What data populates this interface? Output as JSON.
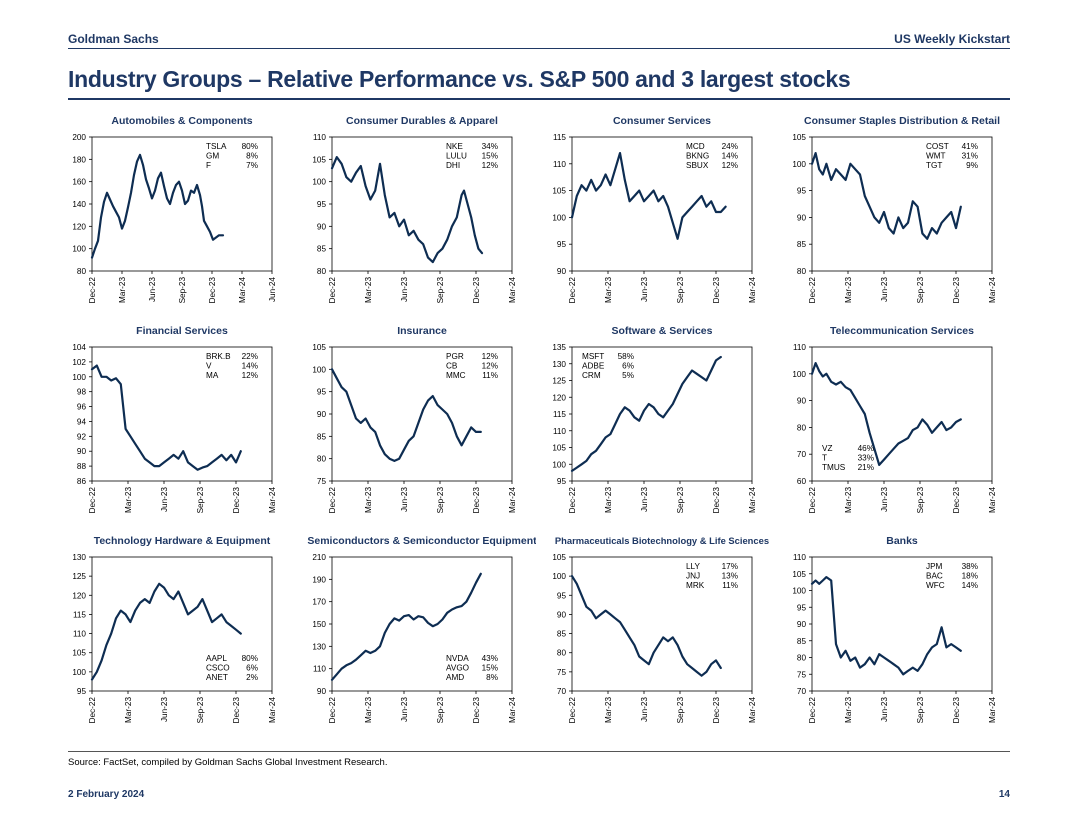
{
  "header": {
    "brand": "Goldman Sachs",
    "report": "US Weekly Kickstart",
    "title": "Industry Groups – Relative Performance vs. S&P 500 and 3 largest stocks"
  },
  "footer": {
    "source": "Source: FactSet, compiled by Goldman Sachs Global Investment Research.",
    "date": "2 February 2024",
    "page": "14"
  },
  "colors": {
    "line": "#0e2d52",
    "brand": "#1f3864",
    "axis": "#000000"
  },
  "x_ticks": [
    "Dec-22",
    "Mar-23",
    "Jun-23",
    "Sep-23",
    "Dec-23",
    "Mar-24",
    "Jun-24"
  ],
  "chart_data": [
    {
      "type": "line",
      "title": "Automobiles & Components",
      "ylim": [
        80,
        200
      ],
      "yticks": [
        "80",
        "100",
        "120",
        "140",
        "160",
        "180",
        "200"
      ],
      "xticks": [
        "Dec-22",
        "Mar-23",
        "Jun-23",
        "Sep-23",
        "Dec-23",
        "Mar-24",
        "Jun-24"
      ],
      "x": [
        0,
        0.3,
        0.6,
        0.9,
        1.2,
        1.5,
        1.8,
        2.1,
        2.4,
        2.7,
        3,
        3.3,
        3.6,
        3.9,
        4.2,
        4.5,
        4.8,
        5.1,
        5.4,
        5.7,
        6,
        6.3,
        6.6,
        6.9,
        7.2,
        7.5,
        7.8,
        8.1,
        8.4,
        8.7,
        9,
        9.3,
        9.6,
        9.9,
        10.2,
        10.5,
        10.8,
        11,
        11.2,
        11.5,
        11.8,
        12.1,
        12.4,
        12.7,
        13.1
      ],
      "values": [
        92,
        100,
        107,
        128,
        142,
        150,
        144,
        138,
        133,
        128,
        118,
        125,
        137,
        150,
        166,
        178,
        184,
        175,
        162,
        154,
        145,
        152,
        163,
        168,
        156,
        145,
        140,
        150,
        157,
        160,
        152,
        140,
        143,
        152,
        150,
        157,
        148,
        138,
        125,
        120,
        115,
        108,
        110,
        112,
        112
      ],
      "legend": [
        {
          "ticker": "TSLA",
          "pct": "80%"
        },
        {
          "ticker": "GM",
          "pct": "8%"
        },
        {
          "ticker": "F",
          "pct": "7%"
        }
      ],
      "legend_pos": "top-right"
    },
    {
      "type": "line",
      "title": "Consumer Durables & Apparel",
      "ylim": [
        80,
        110
      ],
      "yticks": [
        "80",
        "85",
        "90",
        "95",
        "100",
        "105",
        "110"
      ],
      "xticks": [
        "Dec-22",
        "Mar-23",
        "Jun-23",
        "Sep-23",
        "Dec-23",
        "Mar-24"
      ],
      "x": [
        0,
        0.4,
        0.8,
        1.2,
        1.6,
        2,
        2.4,
        2.8,
        3.2,
        3.6,
        4,
        4.4,
        4.8,
        5.2,
        5.6,
        6,
        6.4,
        6.8,
        7.2,
        7.6,
        8,
        8.4,
        8.8,
        9.2,
        9.6,
        10,
        10.4,
        10.8,
        11,
        11.3,
        11.6,
        11.9,
        12.2,
        12.5
      ],
      "values": [
        103,
        105.5,
        104,
        101,
        100,
        102,
        103.5,
        99,
        96,
        98,
        104,
        97,
        92,
        93,
        90,
        91.5,
        88,
        89,
        87,
        86,
        83,
        82,
        84,
        85,
        87,
        90,
        92,
        97,
        98,
        95,
        92,
        88,
        85,
        84
      ],
      "legend": [
        {
          "ticker": "NKE",
          "pct": "34%"
        },
        {
          "ticker": "LULU",
          "pct": "15%"
        },
        {
          "ticker": "DHI",
          "pct": "12%"
        }
      ],
      "legend_pos": "top-right"
    },
    {
      "type": "line",
      "title": "Consumer Services",
      "ylim": [
        90,
        115
      ],
      "yticks": [
        "90",
        "95",
        "100",
        "105",
        "110",
        "115"
      ],
      "xticks": [
        "Dec-22",
        "Mar-23",
        "Jun-23",
        "Sep-23",
        "Dec-23",
        "Mar-24"
      ],
      "x": [
        0,
        0.4,
        0.8,
        1.2,
        1.6,
        2,
        2.4,
        2.8,
        3.2,
        3.6,
        4,
        4.4,
        4.8,
        5.2,
        5.6,
        6,
        6.4,
        6.8,
        7.2,
        7.6,
        8,
        8.4,
        8.8,
        9.2,
        9.6,
        10,
        10.4,
        10.8,
        11.2,
        11.6,
        12,
        12.4,
        12.8
      ],
      "values": [
        100,
        104,
        106,
        105,
        107,
        105,
        106,
        108,
        106,
        109,
        112,
        107,
        103,
        104,
        105,
        103,
        104,
        105,
        103,
        104,
        102,
        99,
        96,
        100,
        101,
        102,
        103,
        104,
        102,
        103,
        101,
        101,
        102
      ],
      "legend": [
        {
          "ticker": "MCD",
          "pct": "24%"
        },
        {
          "ticker": "BKNG",
          "pct": "14%"
        },
        {
          "ticker": "SBUX",
          "pct": "12%"
        }
      ],
      "legend_pos": "top-right"
    },
    {
      "type": "line",
      "title": "Consumer Staples Distribution & Retail",
      "ylim": [
        80,
        105
      ],
      "yticks": [
        "80",
        "85",
        "90",
        "95",
        "100",
        "105"
      ],
      "xticks": [
        "Dec-22",
        "Mar-23",
        "Jun-23",
        "Sep-23",
        "Dec-23",
        "Mar-24"
      ],
      "x": [
        0,
        0.3,
        0.6,
        0.9,
        1.2,
        1.6,
        2,
        2.4,
        2.8,
        3.2,
        3.6,
        4,
        4.4,
        4.8,
        5.2,
        5.6,
        6,
        6.4,
        6.8,
        7.2,
        7.6,
        8,
        8.4,
        8.8,
        9.2,
        9.6,
        10,
        10.4,
        10.8,
        11.2,
        11.6,
        12,
        12.4
      ],
      "values": [
        100,
        102,
        99,
        98,
        100,
        97,
        99,
        98,
        97,
        100,
        99,
        98,
        94,
        92,
        90,
        89,
        91,
        88,
        87,
        90,
        88,
        89,
        93,
        92,
        87,
        86,
        88,
        87,
        89,
        90,
        91,
        88,
        92
      ],
      "legend": [
        {
          "ticker": "COST",
          "pct": "41%"
        },
        {
          "ticker": "WMT",
          "pct": "31%"
        },
        {
          "ticker": "TGT",
          "pct": "9%"
        }
      ],
      "legend_pos": "top-right"
    },
    {
      "type": "line",
      "title": "Financial Services",
      "ylim": [
        86,
        104
      ],
      "yticks": [
        "86",
        "88",
        "90",
        "92",
        "94",
        "96",
        "98",
        "100",
        "102",
        "104"
      ],
      "xticks": [
        "Dec-22",
        "Mar-23",
        "Jun-23",
        "Sep-23",
        "Dec-23",
        "Mar-24"
      ],
      "x": [
        0,
        0.4,
        0.8,
        1.2,
        1.6,
        2,
        2.4,
        2.8,
        3.2,
        3.6,
        4,
        4.4,
        4.8,
        5.2,
        5.6,
        6,
        6.4,
        6.8,
        7.2,
        7.6,
        8,
        8.4,
        8.8,
        9.2,
        9.6,
        10,
        10.4,
        10.8,
        11.2,
        11.6,
        12,
        12.4
      ],
      "values": [
        101,
        101.5,
        100,
        100,
        99.5,
        99.8,
        99,
        93,
        92,
        91,
        90,
        89,
        88.5,
        88,
        88,
        88.5,
        89,
        89.5,
        89,
        90,
        88.5,
        88,
        87.5,
        87.8,
        88,
        88.5,
        89,
        89.5,
        88.8,
        89.5,
        88.5,
        90
      ],
      "legend": [
        {
          "ticker": "BRK.B",
          "pct": "22%"
        },
        {
          "ticker": "V",
          "pct": "14%"
        },
        {
          "ticker": "MA",
          "pct": "12%"
        }
      ],
      "legend_pos": "top-right"
    },
    {
      "type": "line",
      "title": "Insurance",
      "ylim": [
        75,
        105
      ],
      "yticks": [
        "75",
        "80",
        "85",
        "90",
        "95",
        "100",
        "105"
      ],
      "xticks": [
        "Dec-22",
        "Mar-23",
        "Jun-23",
        "Sep-23",
        "Dec-23",
        "Mar-24"
      ],
      "x": [
        0,
        0.4,
        0.8,
        1.2,
        1.6,
        2,
        2.4,
        2.8,
        3.2,
        3.6,
        4,
        4.4,
        4.8,
        5.2,
        5.6,
        6,
        6.4,
        6.8,
        7.2,
        7.6,
        8,
        8.4,
        8.8,
        9.2,
        9.6,
        10,
        10.4,
        10.8,
        11.2,
        11.6,
        12,
        12.4
      ],
      "values": [
        100,
        98,
        96,
        95,
        92,
        89,
        88,
        89,
        87,
        86,
        83,
        81,
        80,
        79.5,
        80,
        82,
        84,
        85,
        88,
        91,
        93,
        94,
        92,
        91,
        90,
        88,
        85,
        83,
        85,
        87,
        86,
        86
      ],
      "legend": [
        {
          "ticker": "PGR",
          "pct": "12%"
        },
        {
          "ticker": "CB",
          "pct": "12%"
        },
        {
          "ticker": "MMC",
          "pct": "11%"
        }
      ],
      "legend_pos": "top-right"
    },
    {
      "type": "line",
      "title": "Software & Services",
      "ylim": [
        95,
        135
      ],
      "yticks": [
        "95",
        "100",
        "105",
        "110",
        "115",
        "120",
        "125",
        "130",
        "135"
      ],
      "xticks": [
        "Dec-22",
        "Mar-23",
        "Jun-23",
        "Sep-23",
        "Dec-23",
        "Mar-24"
      ],
      "x": [
        0,
        0.4,
        0.8,
        1.2,
        1.6,
        2,
        2.4,
        2.8,
        3.2,
        3.6,
        4,
        4.4,
        4.8,
        5.2,
        5.6,
        6,
        6.4,
        6.8,
        7.2,
        7.6,
        8,
        8.4,
        8.8,
        9.2,
        9.6,
        10,
        10.4,
        10.8,
        11.2,
        11.6,
        12,
        12.4
      ],
      "values": [
        98,
        99,
        100,
        101,
        103,
        104,
        106,
        108,
        109,
        112,
        115,
        117,
        116,
        114,
        113,
        116,
        118,
        117,
        115,
        114,
        116,
        118,
        121,
        124,
        126,
        128,
        127,
        126,
        125,
        128,
        131,
        132
      ],
      "legend": [
        {
          "ticker": "MSFT",
          "pct": "58%"
        },
        {
          "ticker": "ADBE",
          "pct": "6%"
        },
        {
          "ticker": "CRM",
          "pct": "5%"
        }
      ],
      "legend_pos": "top-left"
    },
    {
      "type": "line",
      "title": "Telecommunication Services",
      "ylim": [
        60,
        110
      ],
      "yticks": [
        "60",
        "70",
        "80",
        "90",
        "100",
        "110"
      ],
      "xticks": [
        "Dec-22",
        "Mar-23",
        "Jun-23",
        "Sep-23",
        "Dec-23",
        "Mar-24"
      ],
      "x": [
        0,
        0.3,
        0.6,
        0.9,
        1.2,
        1.6,
        2,
        2.4,
        2.8,
        3.2,
        3.6,
        4,
        4.4,
        4.8,
        5.2,
        5.6,
        6,
        6.4,
        6.8,
        7.2,
        7.6,
        8,
        8.4,
        8.8,
        9.2,
        9.6,
        10,
        10.4,
        10.8,
        11.2,
        11.6,
        12,
        12.4
      ],
      "values": [
        100,
        104,
        101,
        99,
        100,
        97,
        96,
        97,
        95,
        94,
        91,
        88,
        85,
        78,
        72,
        66,
        68,
        70,
        72,
        74,
        75,
        76,
        79,
        80,
        83,
        81,
        78,
        80,
        82,
        79,
        80,
        82,
        83
      ],
      "legend": [
        {
          "ticker": "VZ",
          "pct": "46%"
        },
        {
          "ticker": "T",
          "pct": "33%"
        },
        {
          "ticker": "TMUS",
          "pct": "21%"
        }
      ],
      "legend_pos": "bottom-left"
    },
    {
      "type": "line",
      "title": "Technology Hardware & Equipment",
      "ylim": [
        95,
        130
      ],
      "yticks": [
        "95",
        "100",
        "105",
        "110",
        "115",
        "120",
        "125",
        "130"
      ],
      "xticks": [
        "Dec-22",
        "Mar-23",
        "Jun-23",
        "Sep-23",
        "Dec-23",
        "Mar-24"
      ],
      "x": [
        0,
        0.4,
        0.8,
        1.2,
        1.6,
        2,
        2.4,
        2.8,
        3.2,
        3.6,
        4,
        4.4,
        4.8,
        5.2,
        5.6,
        6,
        6.4,
        6.8,
        7.2,
        7.6,
        8,
        8.4,
        8.8,
        9.2,
        9.6,
        10,
        10.4,
        10.8,
        11.2,
        11.6,
        12,
        12.4
      ],
      "values": [
        98,
        100,
        103,
        107,
        110,
        114,
        116,
        115,
        113,
        116,
        118,
        119,
        118,
        121,
        123,
        122,
        120,
        119,
        121,
        118,
        115,
        116,
        117,
        119,
        116,
        113,
        114,
        115,
        113,
        112,
        111,
        110
      ],
      "legend": [
        {
          "ticker": "AAPL",
          "pct": "80%"
        },
        {
          "ticker": "CSCO",
          "pct": "6%"
        },
        {
          "ticker": "ANET",
          "pct": "2%"
        }
      ],
      "legend_pos": "bottom-right"
    },
    {
      "type": "line",
      "title": "Semiconductors & Semiconductor Equipment",
      "ylim": [
        90,
        210
      ],
      "yticks": [
        "90",
        "110",
        "130",
        "150",
        "170",
        "190",
        "210"
      ],
      "xticks": [
        "Dec-22",
        "Mar-23",
        "Jun-23",
        "Sep-23",
        "Dec-23",
        "Mar-24"
      ],
      "x": [
        0,
        0.4,
        0.8,
        1.2,
        1.6,
        2,
        2.4,
        2.8,
        3.2,
        3.6,
        4,
        4.4,
        4.8,
        5.2,
        5.6,
        6,
        6.4,
        6.8,
        7.2,
        7.6,
        8,
        8.4,
        8.8,
        9.2,
        9.6,
        10,
        10.4,
        10.8,
        11.2,
        11.6,
        12,
        12.4
      ],
      "values": [
        100,
        105,
        110,
        113,
        115,
        118,
        122,
        126,
        124,
        126,
        130,
        142,
        150,
        155,
        153,
        157,
        158,
        154,
        157,
        156,
        151,
        148,
        150,
        154,
        160,
        163,
        165,
        166,
        170,
        178,
        187,
        195
      ],
      "legend": [
        {
          "ticker": "NVDA",
          "pct": "43%"
        },
        {
          "ticker": "AVGO",
          "pct": "15%"
        },
        {
          "ticker": "AMD",
          "pct": "8%"
        }
      ],
      "legend_pos": "bottom-right"
    },
    {
      "type": "line",
      "title": "Pharmaceuticals Biotechnology & Life Sciences",
      "ylim": [
        70,
        105
      ],
      "yticks": [
        "70",
        "75",
        "80",
        "85",
        "90",
        "95",
        "100",
        "105"
      ],
      "xticks": [
        "Dec-22",
        "Mar-23",
        "Jun-23",
        "Sep-23",
        "Dec-23",
        "Mar-24"
      ],
      "x": [
        0,
        0.4,
        0.8,
        1.2,
        1.6,
        2,
        2.4,
        2.8,
        3.2,
        3.6,
        4,
        4.4,
        4.8,
        5.2,
        5.6,
        6,
        6.4,
        6.8,
        7.2,
        7.6,
        8,
        8.4,
        8.8,
        9.2,
        9.6,
        10,
        10.4,
        10.8,
        11.2,
        11.6,
        12,
        12.4
      ],
      "values": [
        100,
        98,
        95,
        92,
        91,
        89,
        90,
        91,
        90,
        89,
        88,
        86,
        84,
        82,
        79,
        78,
        77,
        80,
        82,
        84,
        83,
        84,
        82,
        79,
        77,
        76,
        75,
        74,
        75,
        77,
        78,
        76
      ],
      "legend": [
        {
          "ticker": "LLY",
          "pct": "17%"
        },
        {
          "ticker": "JNJ",
          "pct": "13%"
        },
        {
          "ticker": "MRK",
          "pct": "11%"
        }
      ],
      "legend_pos": "top-right"
    },
    {
      "type": "line",
      "title": "Banks",
      "ylim": [
        70,
        110
      ],
      "yticks": [
        "70",
        "75",
        "80",
        "85",
        "90",
        "95",
        "100",
        "105",
        "110"
      ],
      "xticks": [
        "Dec-22",
        "Mar-23",
        "Jun-23",
        "Sep-23",
        "Dec-23",
        "Mar-24"
      ],
      "x": [
        0,
        0.3,
        0.6,
        0.9,
        1.2,
        1.6,
        2,
        2.4,
        2.8,
        3.2,
        3.6,
        4,
        4.4,
        4.8,
        5.2,
        5.6,
        6,
        6.4,
        6.8,
        7.2,
        7.6,
        8,
        8.4,
        8.8,
        9.2,
        9.6,
        10,
        10.4,
        10.8,
        11.2,
        11.6,
        12,
        12.4
      ],
      "values": [
        102,
        103,
        102,
        103,
        104,
        103,
        84,
        80,
        82,
        79,
        80,
        77,
        78,
        80,
        78,
        81,
        80,
        79,
        78,
        77,
        75,
        76,
        77,
        76,
        78,
        81,
        83,
        84,
        89,
        83,
        84,
        83,
        82
      ],
      "legend": [
        {
          "ticker": "JPM",
          "pct": "38%"
        },
        {
          "ticker": "BAC",
          "pct": "18%"
        },
        {
          "ticker": "WFC",
          "pct": "14%"
        }
      ],
      "legend_pos": "top-right"
    }
  ]
}
